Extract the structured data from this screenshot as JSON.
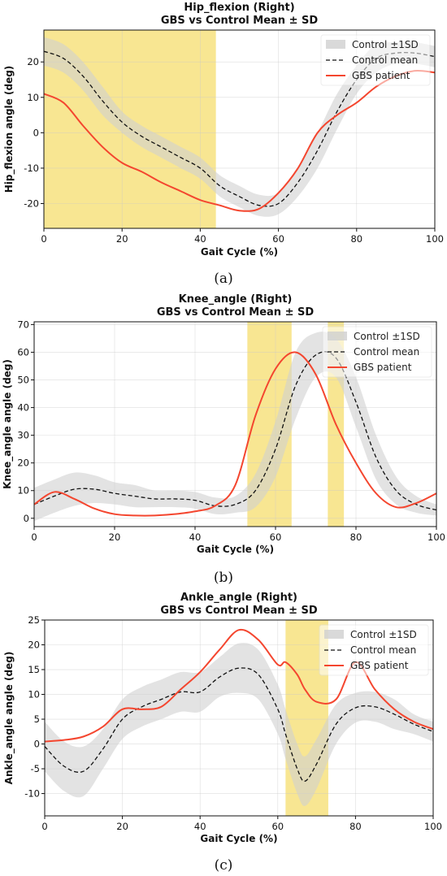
{
  "colors": {
    "band": "#d0d0d0",
    "mean": "#111111",
    "patient": "#f4462f",
    "highlight": "#f6de6e"
  },
  "chart_data": [
    {
      "type": "line",
      "panel_label": "(a)",
      "title": "Hip_flexion (Right)",
      "subtitle": "GBS vs Control Mean ± SD",
      "xlabel": "Gait Cycle (%)",
      "ylabel": "Hip_flexion angle (deg)",
      "xlim": [
        0,
        100
      ],
      "ylim": [
        -27,
        29
      ],
      "xticks": [
        0,
        20,
        40,
        60,
        80,
        100
      ],
      "yticks": [
        -20,
        -10,
        0,
        10,
        20
      ],
      "grid": true,
      "legend_position": "top-right",
      "legend": [
        "Control ±1SD",
        "Control mean",
        "GBS patient"
      ],
      "highlight_ranges": [
        [
          0,
          44
        ]
      ],
      "x": [
        0,
        5,
        10,
        15,
        20,
        25,
        30,
        35,
        40,
        45,
        50,
        55,
        60,
        65,
        70,
        75,
        80,
        85,
        90,
        95,
        100
      ],
      "control_mean": [
        23,
        21,
        16,
        9,
        3,
        -1,
        -4,
        -7,
        -10,
        -15,
        -18,
        -20.5,
        -20,
        -14,
        -5,
        6,
        15,
        21,
        22.5,
        22.5,
        21.5
      ],
      "control_sd": [
        4,
        4,
        4,
        4,
        3,
        3,
        3,
        3,
        3,
        3,
        3,
        3,
        3,
        4,
        5,
        5,
        4,
        4,
        3,
        3,
        3
      ],
      "patient": [
        11,
        8.5,
        2,
        -4,
        -8.5,
        -11,
        -14,
        -16.5,
        -19,
        -20.5,
        -22,
        -21.5,
        -17,
        -10,
        0,
        5,
        8.5,
        13,
        16,
        17.5,
        17
      ]
    },
    {
      "type": "line",
      "panel_label": "(b)",
      "title": "Knee_angle (Right)",
      "subtitle": "GBS vs Control Mean ± SD",
      "xlabel": "Gait Cycle (%)",
      "ylabel": "Knee_angle angle (deg)",
      "xlim": [
        0,
        100
      ],
      "ylim": [
        -3,
        71
      ],
      "xticks": [
        0,
        20,
        40,
        60,
        80,
        100
      ],
      "yticks": [
        0,
        10,
        20,
        30,
        40,
        50,
        60,
        70
      ],
      "grid": true,
      "legend_position": "top-right",
      "legend": [
        "Control ±1SD",
        "Control mean",
        "GBS patient"
      ],
      "highlight_ranges": [
        [
          53,
          64
        ],
        [
          73,
          77
        ]
      ],
      "x": [
        0,
        5,
        10,
        15,
        20,
        25,
        30,
        35,
        40,
        45,
        50,
        55,
        60,
        65,
        70,
        75,
        80,
        85,
        90,
        95,
        100
      ],
      "control_mean": [
        5,
        8,
        10.5,
        10.5,
        9,
        8,
        7,
        7,
        6.5,
        4.5,
        5,
        10,
        25,
        48,
        59,
        58,
        42,
        22,
        10,
        5,
        3
      ],
      "control_sd": [
        6,
        6,
        6,
        5,
        4,
        4,
        3,
        3,
        3,
        3,
        3,
        6,
        10,
        12,
        8,
        7,
        9,
        8,
        5,
        3,
        2
      ],
      "patient": [
        5,
        9.5,
        7,
        3.5,
        1.5,
        1,
        1,
        1.5,
        2.5,
        4.5,
        12,
        37,
        54,
        60,
        52,
        34,
        20,
        9,
        4,
        5.5,
        9
      ]
    },
    {
      "type": "line",
      "panel_label": "(c)",
      "title": "Ankle_angle (Right)",
      "subtitle": "GBS vs Control Mean ± SD",
      "xlabel": "Gait Cycle (%)",
      "ylabel": "Ankle_angle angle (deg)",
      "xlim": [
        0,
        100
      ],
      "ylim": [
        -14.5,
        25
      ],
      "xticks": [
        0,
        20,
        40,
        60,
        80,
        100
      ],
      "yticks": [
        -10,
        -5,
        0,
        5,
        10,
        15,
        20,
        25
      ],
      "grid": true,
      "legend_position": "top-right",
      "legend": [
        "Control ±1SD",
        "Control mean",
        "GBS patient"
      ],
      "highlight_ranges": [
        [
          62,
          73
        ]
      ],
      "x": [
        0,
        5,
        10,
        15,
        20,
        25,
        30,
        35,
        40,
        45,
        50,
        55,
        60,
        62,
        65,
        67,
        70,
        75,
        80,
        85,
        90,
        95,
        100
      ],
      "control_mean": [
        -0.5,
        -4.5,
        -5.5,
        -1,
        5,
        7.5,
        9,
        10.5,
        10.5,
        13.5,
        15.3,
        14,
        7,
        2,
        -5,
        -7.5,
        -4,
        4,
        7.3,
        7.5,
        6,
        4,
        2.5
      ],
      "control_sd": [
        5,
        5,
        5,
        4,
        4,
        4,
        4,
        4,
        4,
        4,
        5,
        5,
        5,
        5,
        5,
        5,
        5,
        4,
        3,
        3,
        3,
        2,
        2
      ],
      "patient": [
        0.5,
        0.8,
        1.5,
        3.5,
        7,
        7,
        7.5,
        11,
        14.5,
        19,
        23,
        21,
        16,
        16.5,
        14,
        11,
        8.5,
        9,
        16.5,
        11,
        7,
        4.5,
        3
      ]
    }
  ]
}
